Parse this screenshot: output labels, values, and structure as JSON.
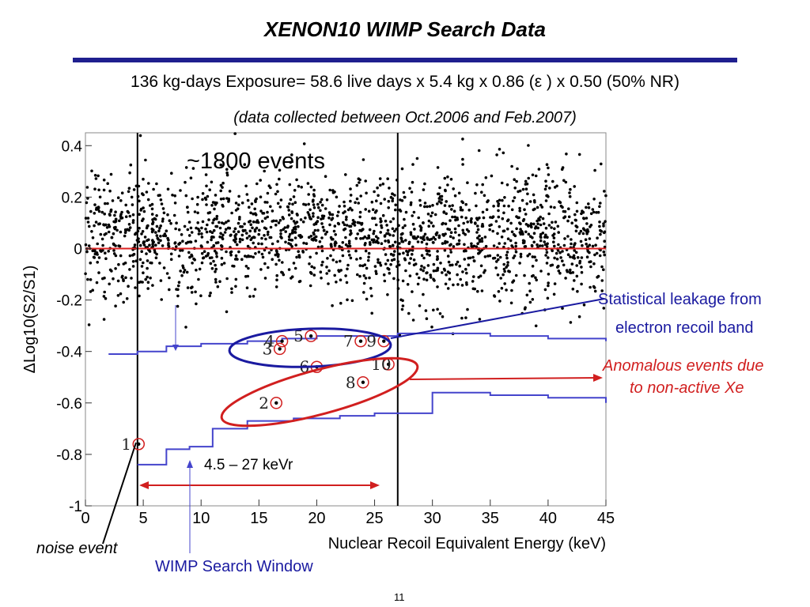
{
  "slide": {
    "title": "XENON10 WIMP Search Data",
    "subtitle": "136 kg-days Exposure= 58.6 live days x 5.4 kg x 0.86 (ε ) x 0.50 (50% NR)",
    "subnote": "(data collected between Oct.2006 and Feb.2007)",
    "page_number": "11"
  },
  "annotations": {
    "events": "~1800 events",
    "leakage_line1": "Statistical leakage from",
    "leakage_line2": "electron recoil band",
    "anomalous_line1": "Anomalous events due",
    "anomalous_line2": "to non-active Xe",
    "window_range": "4.5 – 27 keVr",
    "noise_event": "noise event",
    "wimp_window": "WIMP Search Window"
  },
  "colors": {
    "title_rule": "#1f1f8f",
    "blue": "#1a1aa0",
    "red": "#d11f1f",
    "zero_line": "#dd2222",
    "band_line": "#4444cc"
  },
  "chart_data": {
    "type": "scatter",
    "xlabel": "Nuclear Recoil Equivalent Energy (keV)",
    "ylabel": "ΔLog10(S2/S1)",
    "xlim": [
      0,
      45
    ],
    "ylim": [
      -1,
      0.45
    ],
    "xticks": [
      "0",
      "5",
      "10",
      "15",
      "20",
      "25",
      "30",
      "35",
      "40",
      "45"
    ],
    "xtick_values": [
      0,
      5,
      10,
      15,
      20,
      25,
      30,
      35,
      40,
      45
    ],
    "yticks": [
      "0.4",
      "0.2",
      "0",
      "-0.2",
      "-0.4",
      "-0.6",
      "-0.8",
      "-1"
    ],
    "ytick_values": [
      0.4,
      0.2,
      0,
      -0.2,
      -0.4,
      -0.6,
      -0.8,
      -1
    ],
    "window_lines_x": [
      4.5,
      27
    ],
    "zero_line_y": 0,
    "upper_band": {
      "x": [
        2,
        4.5,
        7,
        10,
        14,
        17,
        20,
        24,
        27,
        30,
        35,
        40,
        45
      ],
      "y": [
        -0.41,
        -0.4,
        -0.38,
        -0.37,
        -0.36,
        -0.35,
        -0.34,
        -0.34,
        -0.33,
        -0.33,
        -0.34,
        -0.35,
        -0.36
      ]
    },
    "lower_band": {
      "x": [
        4.5,
        7,
        9,
        11,
        14,
        18,
        22,
        25,
        27,
        30,
        35,
        40,
        45
      ],
      "y": [
        -0.84,
        -0.78,
        -0.77,
        -0.7,
        -0.67,
        -0.66,
        -0.65,
        -0.64,
        -0.64,
        -0.56,
        -0.57,
        -0.58,
        -0.6
      ]
    },
    "candidate_events": [
      {
        "label": "1",
        "x": 4.6,
        "y": -0.76
      },
      {
        "label": "2",
        "x": 16.5,
        "y": -0.6
      },
      {
        "label": "3",
        "x": 16.8,
        "y": -0.39
      },
      {
        "label": "4",
        "x": 17.0,
        "y": -0.36
      },
      {
        "label": "5",
        "x": 19.5,
        "y": -0.34
      },
      {
        "label": "6",
        "x": 20.0,
        "y": -0.46
      },
      {
        "label": "7",
        "x": 23.8,
        "y": -0.36
      },
      {
        "label": "8",
        "x": 24.0,
        "y": -0.52
      },
      {
        "label": "9",
        "x": 25.8,
        "y": -0.36
      },
      {
        "label": "10",
        "x": 26.2,
        "y": -0.45
      }
    ],
    "background_events_note": "~1800 events"
  }
}
